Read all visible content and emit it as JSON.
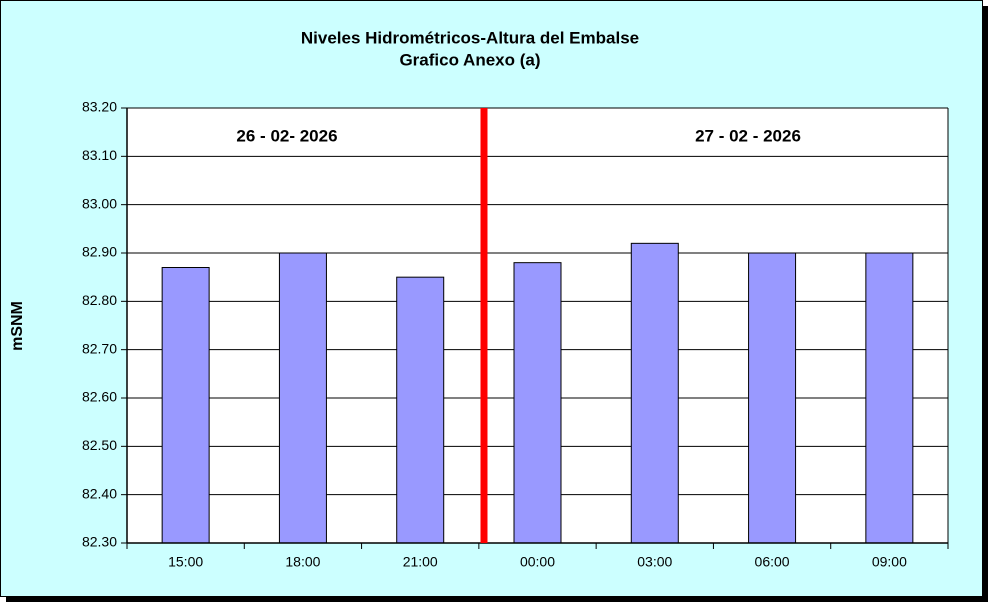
{
  "chart_data": {
    "type": "bar",
    "title": "Niveles Hidrométricos-Altura del Embalse",
    "subtitle": "Grafico Anexo (a)",
    "y_label": "mSNM",
    "categories": [
      "15:00",
      "18:00",
      "21:00",
      "00:00",
      "03:00",
      "06:00",
      "09:00"
    ],
    "values": [
      82.87,
      82.9,
      82.85,
      82.88,
      82.92,
      82.9,
      82.9
    ],
    "color": "#9999ff",
    "ylim": [
      82.3,
      83.2
    ],
    "yticks": [
      {
        "value": 82.3,
        "label": "82.30"
      },
      {
        "value": 82.4,
        "label": "82.40"
      },
      {
        "value": 82.5,
        "label": "82.50"
      },
      {
        "value": 82.6,
        "label": "82.60"
      },
      {
        "value": 82.7,
        "label": "82.70"
      },
      {
        "value": 82.8,
        "label": "82.80"
      },
      {
        "value": 82.9,
        "label": "82.90"
      },
      {
        "value": 83.0,
        "label": "83.00"
      },
      {
        "value": 83.1,
        "label": "83.10"
      },
      {
        "value": 83.2,
        "label": "83.20"
      }
    ],
    "grid": true,
    "annotations": [
      "26 - 02- 2026",
      "27 - 02 - 2026"
    ]
  }
}
